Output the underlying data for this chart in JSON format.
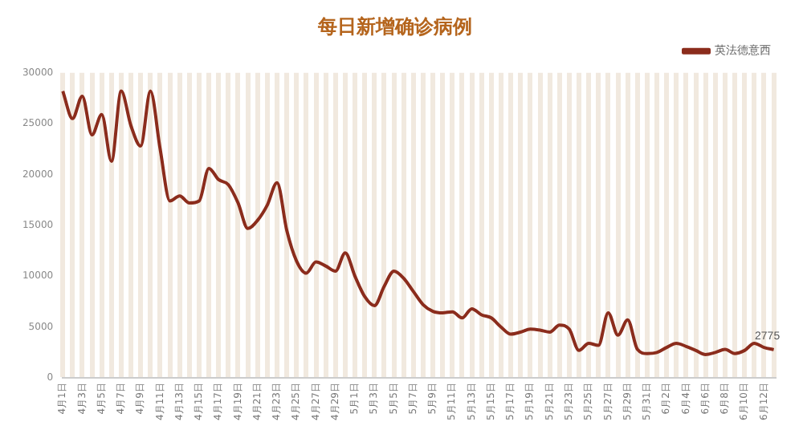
{
  "chart_data": {
    "type": "line",
    "title": "每日新增确诊病例",
    "categories": [
      "4月1日",
      null,
      "4月3日",
      null,
      "4月5日",
      null,
      "4月7日",
      null,
      "4月9日",
      null,
      "4月11日",
      null,
      "4月13日",
      null,
      "4月15日",
      null,
      "4月17日",
      null,
      "4月19日",
      null,
      "4月21日",
      null,
      "4月23日",
      null,
      "4月25日",
      null,
      "4月27日",
      null,
      "4月29日",
      null,
      "5月1日",
      null,
      "5月3日",
      null,
      "5月5日",
      null,
      "5月7日",
      null,
      "5月9日",
      null,
      "5月11日",
      null,
      "5月13日",
      null,
      "5月15日",
      null,
      "5月17日",
      null,
      "5月19日",
      null,
      "5月21日",
      null,
      "5月23日",
      null,
      "5月25日",
      null,
      "5月27日",
      null,
      "5月29日",
      null,
      "5月31日",
      null,
      "6月2日",
      null,
      "6月4日",
      null,
      "6月6日",
      null,
      "6月8日",
      null,
      "6月10日",
      null,
      "6月12日",
      null
    ],
    "series": [
      {
        "name": "英法德意西",
        "color": "#8b2c1c",
        "values": [
          28200,
          25500,
          27700,
          23900,
          25900,
          21300,
          28200,
          24800,
          22800,
          28200,
          22500,
          17400,
          17900,
          17200,
          17400,
          20600,
          19500,
          19000,
          17200,
          14700,
          15500,
          17000,
          19200,
          14500,
          11500,
          10300,
          11400,
          11000,
          10500,
          12300,
          10000,
          8000,
          7100,
          9000,
          10500,
          9800,
          8500,
          7200,
          6550,
          6400,
          6500,
          5900,
          6800,
          6200,
          5900,
          5000,
          4300,
          4500,
          4800,
          4700,
          4500,
          5200,
          4800,
          2700,
          3400,
          3200,
          6400,
          4200,
          5700,
          2800,
          2400,
          2500,
          3000,
          3400,
          3100,
          2700,
          2300,
          2500,
          2800,
          2400,
          2700,
          3400,
          3000,
          2775
        ],
        "value_labels": [
          null,
          null,
          null,
          null,
          null,
          null,
          null,
          null,
          null,
          null,
          null,
          null,
          null,
          null,
          null,
          null,
          null,
          null,
          null,
          null,
          null,
          null,
          null,
          null,
          null,
          null,
          null,
          null,
          null,
          null,
          null,
          null,
          null,
          null,
          null,
          null,
          null,
          null,
          null,
          null,
          null,
          null,
          null,
          null,
          null,
          null,
          null,
          null,
          null,
          null,
          null,
          null,
          null,
          null,
          null,
          null,
          null,
          null,
          null,
          null,
          null,
          null,
          null,
          null,
          null,
          null,
          null,
          null,
          null,
          null,
          null,
          null,
          null,
          "2775"
        ]
      }
    ],
    "ylim": [
      0,
      30000
    ],
    "yticks": [
      0,
      5000,
      10000,
      15000,
      20000,
      25000,
      30000
    ],
    "grid": "x",
    "legend": "top right",
    "marker": "none",
    "line_style": "solid"
  }
}
